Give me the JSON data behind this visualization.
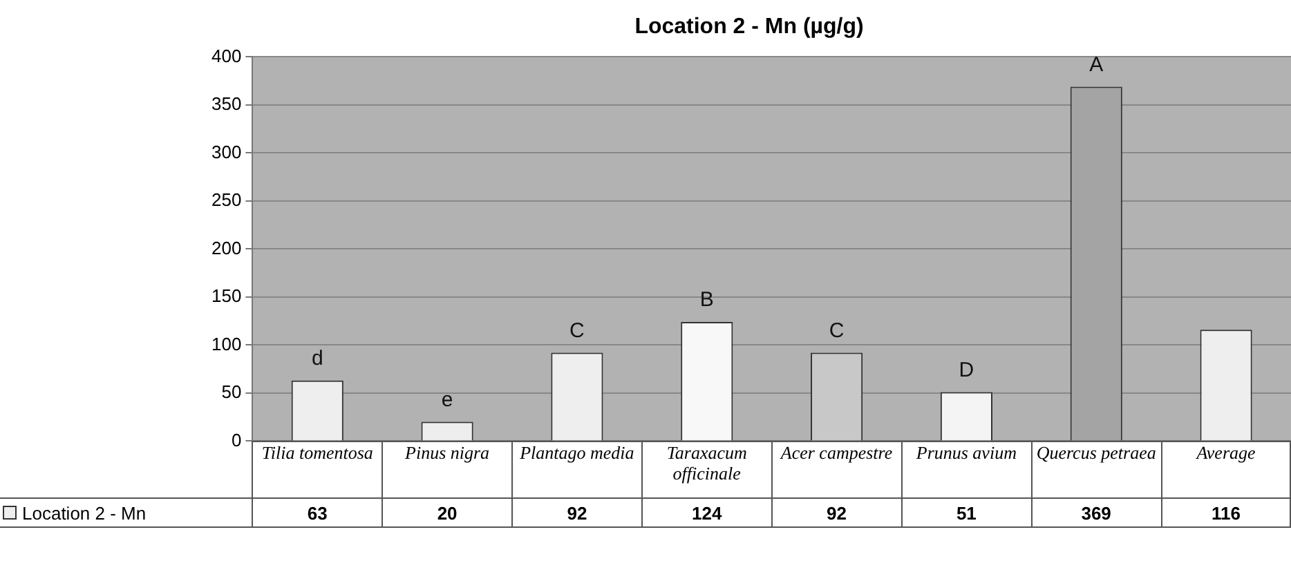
{
  "chart_data": {
    "type": "bar",
    "title": "Location 2 - Mn (µg/g)",
    "categories": [
      "Tilia tomentosa",
      "Pinus nigra",
      "Plantago media",
      "Taraxacum officinale",
      "Acer campestre",
      "Prunus avium",
      "Quercus petraea",
      "Average"
    ],
    "series": [
      {
        "name": "Location 2 - Mn",
        "colors": [
          "#eeeeee",
          "#eeeeee",
          "#eeeeee",
          "#f8f8f8",
          "#c8c8c8",
          "#f4f4f4",
          "#a4a4a4",
          "#eeeeee"
        ],
        "values": [
          63,
          20,
          92,
          124,
          92,
          51,
          369,
          116
        ]
      }
    ],
    "ylim": [
      0,
      400
    ],
    "yticks": [
      0,
      50,
      100,
      150,
      200,
      250,
      300,
      350,
      400
    ],
    "grid": "y",
    "legend": "bottom",
    "data_labels": true,
    "annotations": [
      {
        "text": "d",
        "x": "Tilia tomentosa",
        "y": 63
      },
      {
        "text": "e",
        "x": "Pinus nigra",
        "y": 20
      },
      {
        "text": "C",
        "x": "Plantago media",
        "y": 92
      },
      {
        "text": "B",
        "x": "Taraxacum officinale",
        "y": 124
      },
      {
        "text": "C",
        "x": "Acer campestre",
        "y": 92
      },
      {
        "text": "D",
        "x": "Prunus avium",
        "y": 51
      },
      {
        "text": "A",
        "x": "Quercus petraea",
        "y": 369
      }
    ]
  }
}
